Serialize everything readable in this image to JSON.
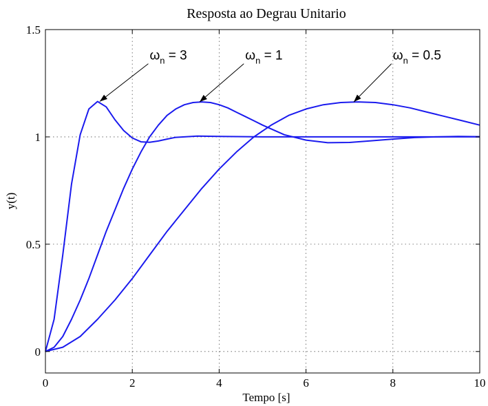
{
  "chart_data": {
    "type": "line",
    "title": "Resposta ao Degrau Unitario",
    "xlabel": "Tempo [s]",
    "ylabel": "y(t)",
    "xlim": [
      0,
      10
    ],
    "ylim": [
      -0.1,
      1.5
    ],
    "xticks": [
      0,
      2,
      4,
      6,
      8,
      10
    ],
    "yticks": [
      0,
      0.5,
      1,
      1.5
    ],
    "xtick_labels": [
      "0",
      "2",
      "4",
      "6",
      "8",
      "10"
    ],
    "ytick_labels": [
      "0",
      "0.5",
      "1",
      "1.5"
    ],
    "grid": true,
    "line_color": "#1a1aee",
    "series": [
      {
        "key": "wn3",
        "x": [
          0,
          0.2,
          0.4,
          0.6,
          0.8,
          1.0,
          1.2,
          1.4,
          1.6,
          1.8,
          2.0,
          2.2,
          2.4,
          2.6,
          2.8,
          3.0,
          3.5,
          4.0,
          5.0,
          6.0,
          8.0,
          10.0
        ],
        "y": [
          0,
          0.15,
          0.45,
          0.78,
          1.01,
          1.13,
          1.165,
          1.14,
          1.08,
          1.03,
          0.995,
          0.977,
          0.975,
          0.981,
          0.99,
          0.998,
          1.004,
          1.002,
          1.0,
          1.0,
          1.0,
          1.0
        ]
      },
      {
        "key": "wn1",
        "x": [
          0,
          0.2,
          0.4,
          0.6,
          0.8,
          1.0,
          1.2,
          1.4,
          1.6,
          1.8,
          2.0,
          2.2,
          2.4,
          2.6,
          2.8,
          3.0,
          3.2,
          3.4,
          3.6,
          3.8,
          4.0,
          4.2,
          4.4,
          4.6,
          4.8,
          5.0,
          5.5,
          6.0,
          6.5,
          7.0,
          7.5,
          8.0,
          8.5,
          9.0,
          9.5,
          10.0
        ],
        "y": [
          0,
          0.02,
          0.07,
          0.15,
          0.24,
          0.34,
          0.45,
          0.56,
          0.66,
          0.76,
          0.85,
          0.93,
          1.0,
          1.055,
          1.1,
          1.13,
          1.15,
          1.16,
          1.163,
          1.16,
          1.15,
          1.135,
          1.115,
          1.095,
          1.075,
          1.055,
          1.01,
          0.985,
          0.973,
          0.974,
          0.982,
          0.99,
          0.997,
          1.0,
          1.002,
          1.001
        ]
      },
      {
        "key": "wn05",
        "x": [
          0,
          0.4,
          0.8,
          1.2,
          1.6,
          2.0,
          2.4,
          2.8,
          3.2,
          3.6,
          4.0,
          4.4,
          4.8,
          5.2,
          5.6,
          6.0,
          6.4,
          6.8,
          7.2,
          7.6,
          8.0,
          8.4,
          8.8,
          9.2,
          9.6,
          10.0
        ],
        "y": [
          0,
          0.02,
          0.07,
          0.15,
          0.24,
          0.34,
          0.45,
          0.56,
          0.66,
          0.76,
          0.85,
          0.93,
          1.0,
          1.055,
          1.1,
          1.13,
          1.15,
          1.16,
          1.163,
          1.16,
          1.15,
          1.135,
          1.115,
          1.095,
          1.075,
          1.055
        ]
      }
    ],
    "annotations": [
      {
        "key": "a3",
        "symbol": "ω",
        "subscript": "n",
        "rest": " = 3",
        "point": [
          1.25,
          1.165
        ],
        "text_at": [
          2.4,
          1.36
        ]
      },
      {
        "key": "a1",
        "symbol": "ω",
        "subscript": "n",
        "rest": " = 1",
        "point": [
          3.55,
          1.163
        ],
        "text_at": [
          4.6,
          1.36
        ]
      },
      {
        "key": "a05",
        "symbol": "ω",
        "subscript": "n",
        "rest": " = 0.5",
        "point": [
          7.1,
          1.163
        ],
        "text_at": [
          8.0,
          1.36
        ]
      }
    ]
  }
}
